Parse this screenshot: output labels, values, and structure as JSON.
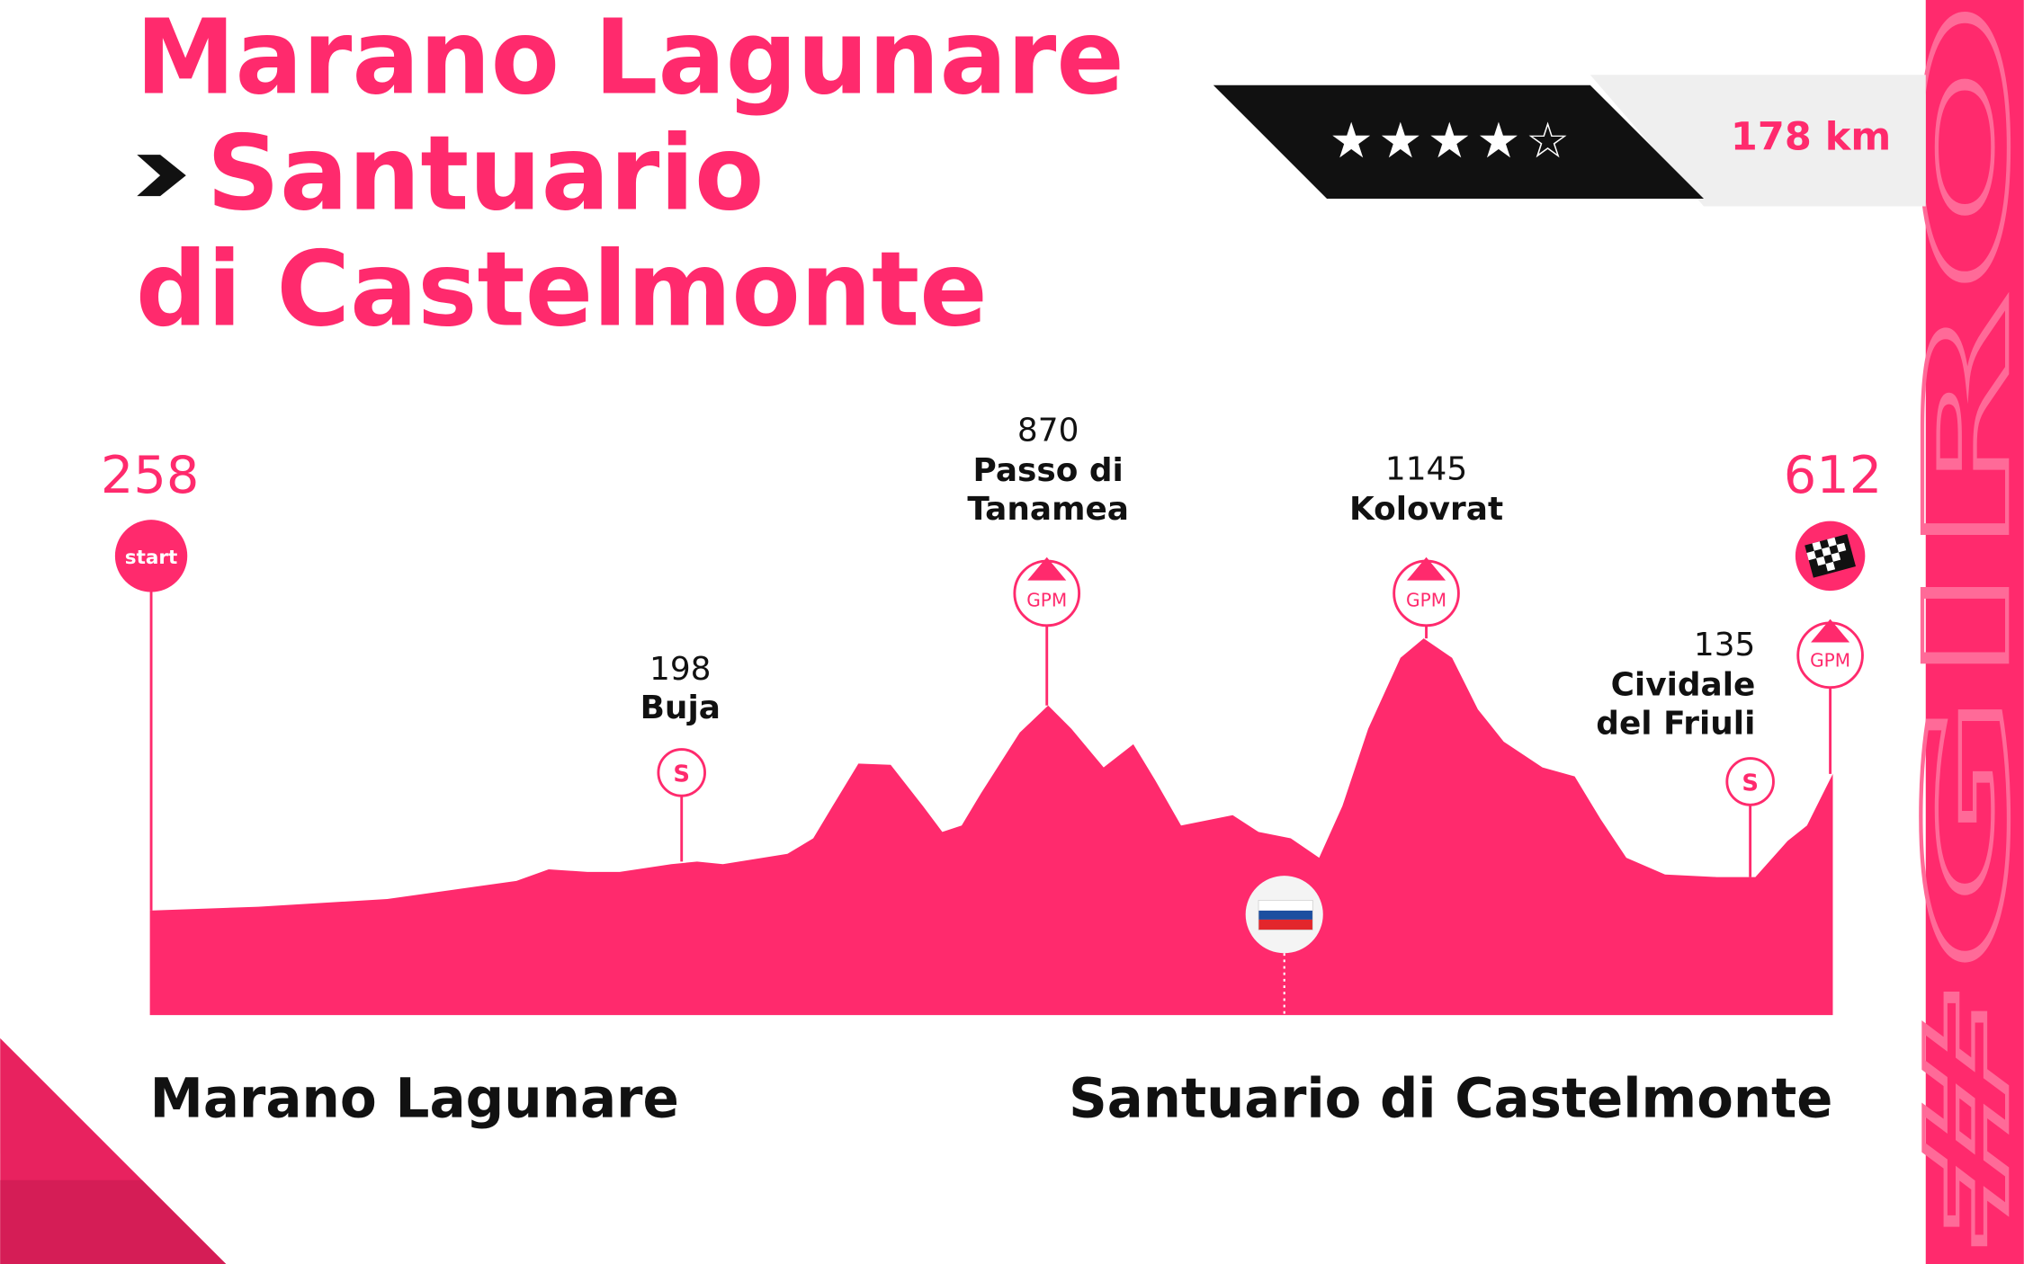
{
  "title": {
    "lines": [
      "Marano Lagunare",
      "Santuario",
      "di Castelmonte"
    ]
  },
  "rating": "★★★★☆",
  "distance": "178 km",
  "start": {
    "elevation": 258,
    "badge": "start"
  },
  "finish": {
    "elevation": 612,
    "badge": "GPM"
  },
  "points": [
    {
      "elevation": 198,
      "name": [
        "Buja"
      ],
      "badge": "S"
    },
    {
      "elevation": 870,
      "name": [
        "Passo di",
        "Tanamea"
      ],
      "badge": "GPM"
    },
    {
      "elevation": 1145,
      "name": [
        "Kolovrat"
      ],
      "badge": "GPM"
    },
    {
      "elevation": 135,
      "name": [
        "Cividale",
        "del Friuli"
      ],
      "badge": "S"
    }
  ],
  "footer": {
    "start": "Marano Lagunare",
    "finish": "Santuario di Castelmonte"
  },
  "watermark": "#GIRO"
}
